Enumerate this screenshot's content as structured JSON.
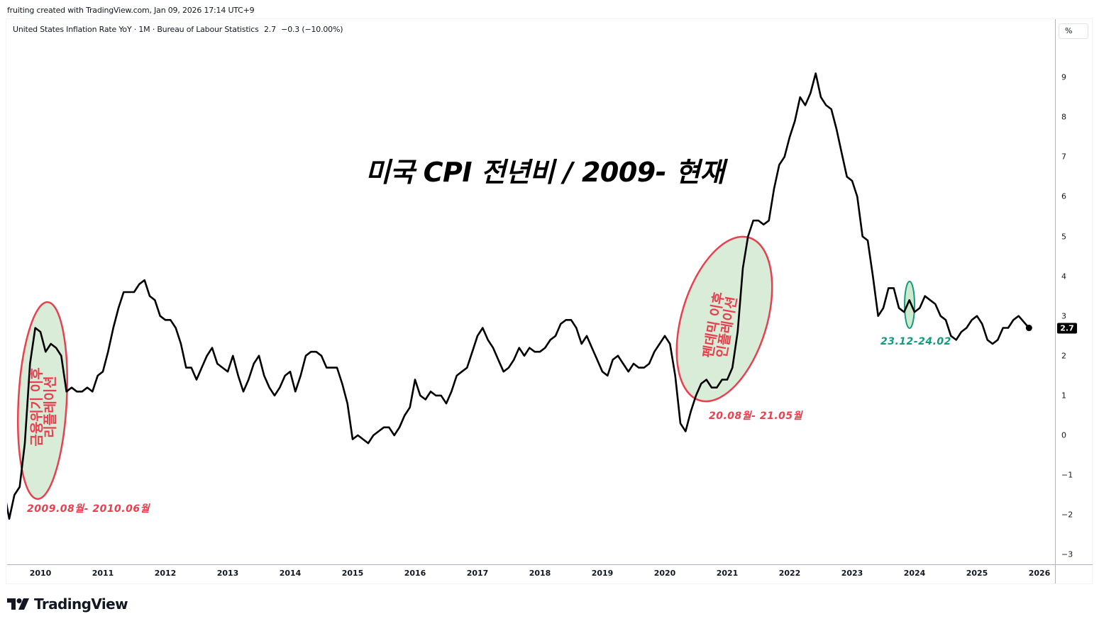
{
  "header": {
    "credit": "fruiting created with TradingView.com, Jan 09, 2026 17:14 UTC+9"
  },
  "legend": {
    "symbol": "United States Inflation Rate YoY · 1M · Bureau of Labour Statistics",
    "last": "2.7",
    "change": "−0.3 (−10.00%)"
  },
  "price_axis": {
    "unit_button": "%",
    "last_value_label": "2.7"
  },
  "branding": {
    "logo_text": "TradingView"
  },
  "colors": {
    "line": "#000000",
    "red_annotation": "#e8404f",
    "green_annotation": "#139b7f",
    "ellipse_fill": "#d9ecd8",
    "green_ellipse_fill": "#cdeacf"
  },
  "annotations": {
    "title": "미국 CPI 전년비 / 2009- 현재",
    "gfc": {
      "line1": "금융위기 이후",
      "line2": "리플레이션",
      "date": "2009.08월- 2010.06월"
    },
    "pandemic": {
      "line1": "펜데믹 이후",
      "line2": "인플레이션",
      "date": "20.08월- 21.05월"
    },
    "recent": {
      "date": "23.12-24.02"
    }
  },
  "chart_data": {
    "type": "line",
    "title": "United States Inflation Rate YoY",
    "subtitle": "1M · Bureau of Labour Statistics",
    "xlabel": "",
    "ylabel": "%",
    "ylim": [
      -3.3,
      10.4
    ],
    "grid": false,
    "legend_position": "top-left",
    "x_ticks": [
      "2010",
      "2011",
      "2012",
      "2013",
      "2014",
      "2015",
      "2016",
      "2017",
      "2018",
      "2019",
      "2020",
      "2021",
      "2022",
      "2023",
      "2024",
      "2025",
      "2026"
    ],
    "y_ticks": [
      "9",
      "8",
      "7",
      "6",
      "5",
      "4",
      "3",
      "2",
      "1",
      "0",
      "−1",
      "−2",
      "−3"
    ],
    "start": "2009-06",
    "end": "2025-11",
    "x": [
      "2009-06",
      "2009-07",
      "2009-08",
      "2009-09",
      "2009-10",
      "2009-11",
      "2009-12",
      "2010-01",
      "2010-02",
      "2010-03",
      "2010-04",
      "2010-05",
      "2010-06",
      "2010-07",
      "2010-08",
      "2010-09",
      "2010-10",
      "2010-11",
      "2010-12",
      "2011-01",
      "2011-02",
      "2011-03",
      "2011-04",
      "2011-05",
      "2011-06",
      "2011-07",
      "2011-08",
      "2011-09",
      "2011-10",
      "2011-11",
      "2011-12",
      "2012-01",
      "2012-02",
      "2012-03",
      "2012-04",
      "2012-05",
      "2012-06",
      "2012-07",
      "2012-08",
      "2012-09",
      "2012-10",
      "2012-11",
      "2012-12",
      "2013-01",
      "2013-02",
      "2013-03",
      "2013-04",
      "2013-05",
      "2013-06",
      "2013-07",
      "2013-08",
      "2013-09",
      "2013-10",
      "2013-11",
      "2013-12",
      "2014-01",
      "2014-02",
      "2014-03",
      "2014-04",
      "2014-05",
      "2014-06",
      "2014-07",
      "2014-08",
      "2014-09",
      "2014-10",
      "2014-11",
      "2014-12",
      "2015-01",
      "2015-02",
      "2015-03",
      "2015-04",
      "2015-05",
      "2015-06",
      "2015-07",
      "2015-08",
      "2015-09",
      "2015-10",
      "2015-11",
      "2015-12",
      "2016-01",
      "2016-02",
      "2016-03",
      "2016-04",
      "2016-05",
      "2016-06",
      "2016-07",
      "2016-08",
      "2016-09",
      "2016-10",
      "2016-11",
      "2016-12",
      "2017-01",
      "2017-02",
      "2017-03",
      "2017-04",
      "2017-05",
      "2017-06",
      "2017-07",
      "2017-08",
      "2017-09",
      "2017-10",
      "2017-11",
      "2017-12",
      "2018-01",
      "2018-02",
      "2018-03",
      "2018-04",
      "2018-05",
      "2018-06",
      "2018-07",
      "2018-08",
      "2018-09",
      "2018-10",
      "2018-11",
      "2018-12",
      "2019-01",
      "2019-02",
      "2019-03",
      "2019-04",
      "2019-05",
      "2019-06",
      "2019-07",
      "2019-08",
      "2019-09",
      "2019-10",
      "2019-11",
      "2019-12",
      "2020-01",
      "2020-02",
      "2020-03",
      "2020-04",
      "2020-05",
      "2020-06",
      "2020-07",
      "2020-08",
      "2020-09",
      "2020-10",
      "2020-11",
      "2020-12",
      "2021-01",
      "2021-02",
      "2021-03",
      "2021-04",
      "2021-05",
      "2021-06",
      "2021-07",
      "2021-08",
      "2021-09",
      "2021-10",
      "2021-11",
      "2021-12",
      "2022-01",
      "2022-02",
      "2022-03",
      "2022-04",
      "2022-05",
      "2022-06",
      "2022-07",
      "2022-08",
      "2022-09",
      "2022-10",
      "2022-11",
      "2022-12",
      "2023-01",
      "2023-02",
      "2023-03",
      "2023-04",
      "2023-05",
      "2023-06",
      "2023-07",
      "2023-08",
      "2023-09",
      "2023-10",
      "2023-11",
      "2023-12",
      "2024-01",
      "2024-02",
      "2024-03",
      "2024-04",
      "2024-05",
      "2024-06",
      "2024-07",
      "2024-08",
      "2024-09",
      "2024-10",
      "2024-11",
      "2024-12",
      "2025-01",
      "2025-02",
      "2025-03",
      "2025-04",
      "2025-05",
      "2025-06",
      "2025-07",
      "2025-08",
      "2025-09",
      "2025-11"
    ],
    "series": [
      {
        "name": "United States Inflation Rate YoY",
        "values": [
          -1.4,
          -2.1,
          -1.5,
          -1.3,
          -0.2,
          1.8,
          2.7,
          2.6,
          2.1,
          2.3,
          2.2,
          2.0,
          1.1,
          1.2,
          1.1,
          1.1,
          1.2,
          1.1,
          1.5,
          1.6,
          2.1,
          2.7,
          3.2,
          3.6,
          3.6,
          3.6,
          3.8,
          3.9,
          3.5,
          3.4,
          3.0,
          2.9,
          2.9,
          2.7,
          2.3,
          1.7,
          1.7,
          1.4,
          1.7,
          2.0,
          2.2,
          1.8,
          1.7,
          1.6,
          2.0,
          1.5,
          1.1,
          1.4,
          1.8,
          2.0,
          1.5,
          1.2,
          1.0,
          1.2,
          1.5,
          1.6,
          1.1,
          1.5,
          2.0,
          2.1,
          2.1,
          2.0,
          1.7,
          1.7,
          1.7,
          1.3,
          0.8,
          -0.1,
          0.0,
          -0.1,
          -0.2,
          0.0,
          0.1,
          0.2,
          0.2,
          0.0,
          0.2,
          0.5,
          0.7,
          1.4,
          1.0,
          0.9,
          1.1,
          1.0,
          1.0,
          0.8,
          1.1,
          1.5,
          1.6,
          1.7,
          2.1,
          2.5,
          2.7,
          2.4,
          2.2,
          1.9,
          1.6,
          1.7,
          1.9,
          2.2,
          2.0,
          2.2,
          2.1,
          2.1,
          2.2,
          2.4,
          2.5,
          2.8,
          2.9,
          2.9,
          2.7,
          2.3,
          2.5,
          2.2,
          1.9,
          1.6,
          1.5,
          1.9,
          2.0,
          1.8,
          1.6,
          1.8,
          1.7,
          1.7,
          1.8,
          2.1,
          2.3,
          2.5,
          2.3,
          1.5,
          0.3,
          0.1,
          0.6,
          1.0,
          1.3,
          1.4,
          1.2,
          1.2,
          1.4,
          1.4,
          1.7,
          2.6,
          4.2,
          5.0,
          5.4,
          5.4,
          5.3,
          5.4,
          6.2,
          6.8,
          7.0,
          7.5,
          7.9,
          8.5,
          8.3,
          8.6,
          9.1,
          8.5,
          8.3,
          8.2,
          7.7,
          7.1,
          6.5,
          6.4,
          6.0,
          5.0,
          4.9,
          4.0,
          3.0,
          3.2,
          3.7,
          3.7,
          3.2,
          3.1,
          3.4,
          3.1,
          3.2,
          3.5,
          3.4,
          3.3,
          3.0,
          2.9,
          2.5,
          2.4,
          2.6,
          2.7,
          2.9,
          3.0,
          2.8,
          2.4,
          2.3,
          2.4,
          2.7,
          2.7,
          2.9,
          3.0,
          2.7
        ]
      }
    ]
  }
}
